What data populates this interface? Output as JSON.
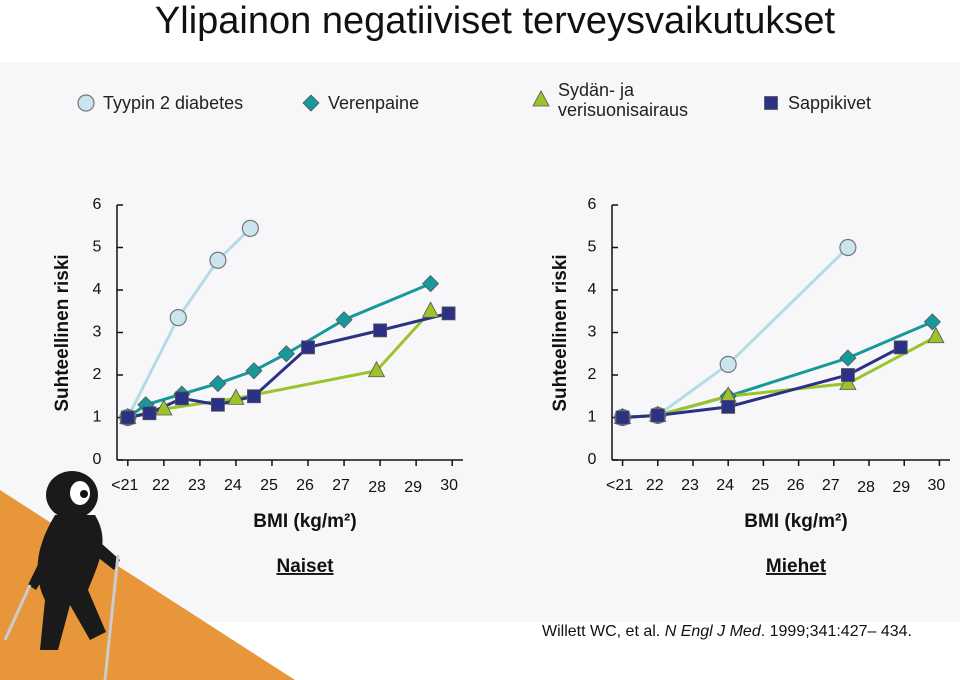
{
  "title": "Ylipainon negatiiviset terveysvaikutukset",
  "chart_data": [
    {
      "type": "line",
      "subtitle": "Naiset",
      "xlabel": "BMI (kg/m²)",
      "ylabel": "Suhteellinen riski",
      "xlim": [
        20.7,
        30.3
      ],
      "ylim": [
        0,
        6
      ],
      "xticks": [
        {
          "value": 21,
          "label": "<21"
        },
        22,
        23,
        24,
        25,
        26,
        27,
        28,
        29,
        30
      ],
      "yticks": [
        0,
        1,
        2,
        3,
        4,
        5,
        6
      ],
      "series": [
        {
          "name": "Tyypin 2 diabetes",
          "color": "#b3dde6",
          "marker": "circle",
          "x": [
            21,
            22.4,
            23.5,
            24.4
          ],
          "values": [
            1,
            3.35,
            4.7,
            5.45
          ]
        },
        {
          "name": "Verenpaine",
          "color": "#17999b",
          "marker": "diamond",
          "x": [
            21,
            21.5,
            22.5,
            23.5,
            24.5,
            25.4,
            27,
            29.4
          ],
          "values": [
            1,
            1.3,
            1.55,
            1.8,
            2.1,
            2.5,
            3.3,
            4.15
          ]
        },
        {
          "name": "Sydän- ja verisuonisairaus",
          "color": "#9cc42a",
          "marker": "triangle",
          "x": [
            21,
            22,
            24,
            27.9,
            29.4
          ],
          "values": [
            1,
            1.2,
            1.45,
            2.1,
            3.5
          ]
        },
        {
          "name": "Sappikivet",
          "color": "#2b3184",
          "marker": "square",
          "x": [
            21,
            21.6,
            22.5,
            23.5,
            24.5,
            26,
            28,
            29.9
          ],
          "values": [
            1,
            1.1,
            1.45,
            1.3,
            1.5,
            2.65,
            3.05,
            3.45
          ]
        }
      ]
    },
    {
      "type": "line",
      "subtitle": "Miehet",
      "xlabel": "BMI (kg/m²)",
      "ylabel": "Suhteellinen riski",
      "xlim": [
        20.7,
        30.3
      ],
      "ylim": [
        0,
        6
      ],
      "xticks": [
        {
          "value": 21,
          "label": "<21"
        },
        22,
        23,
        24,
        25,
        26,
        27,
        28,
        29,
        30
      ],
      "yticks": [
        0,
        1,
        2,
        3,
        4,
        5,
        6
      ],
      "series": [
        {
          "color": "#b3dde6",
          "marker": "circle",
          "x": [
            21,
            22,
            24,
            27.4
          ],
          "values": [
            1,
            1.05,
            2.25,
            5
          ]
        },
        {
          "color": "#17999b",
          "marker": "diamond",
          "x": [
            21,
            22,
            24,
            27.4,
            29.8
          ],
          "values": [
            1,
            1.05,
            1.5,
            2.4,
            3.25
          ]
        },
        {
          "color": "#9cc42a",
          "marker": "triangle",
          "x": [
            21,
            22,
            24,
            27.4,
            29.9
          ],
          "values": [
            1,
            1.05,
            1.5,
            1.8,
            2.9
          ]
        },
        {
          "color": "#2b3184",
          "marker": "square",
          "x": [
            21,
            22,
            24,
            27.4,
            28.9
          ],
          "values": [
            1,
            1.05,
            1.25,
            2,
            2.65
          ]
        }
      ]
    }
  ],
  "citation": {
    "authors": "Willett WC, et al. ",
    "journal": "N Engl J Med",
    "details": ". 1999;341:427– 434."
  }
}
